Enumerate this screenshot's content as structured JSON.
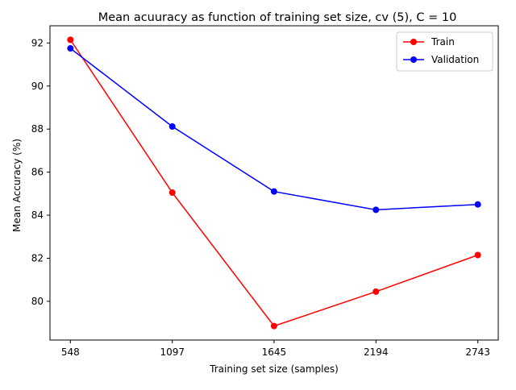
{
  "chart_data": {
    "type": "line",
    "title": "Mean acuuracy as function of training set size, cv (5), C = 10",
    "xlabel": "Training set size (samples)",
    "ylabel": "Mean Accuracy (%)",
    "x": [
      548,
      1097,
      1645,
      2194,
      2743
    ],
    "x_tick_labels": [
      "548",
      "1097",
      "1645",
      "2194",
      "2743"
    ],
    "y_ticks": [
      80,
      82,
      84,
      86,
      88,
      90,
      92
    ],
    "y_tick_labels": [
      "80",
      "82",
      "84",
      "86",
      "88",
      "90",
      "92"
    ],
    "xlim": [
      438,
      2853
    ],
    "ylim": [
      78.2,
      92.8
    ],
    "grid": false,
    "legend_position": "top-right",
    "series": [
      {
        "name": "Train",
        "color": "#ff0000",
        "marker": "circle",
        "values": [
          92.15,
          85.05,
          78.85,
          80.45,
          82.15
        ]
      },
      {
        "name": "Validation",
        "color": "#0000ff",
        "marker": "circle",
        "values": [
          91.75,
          88.12,
          85.1,
          84.25,
          84.5
        ]
      }
    ]
  }
}
